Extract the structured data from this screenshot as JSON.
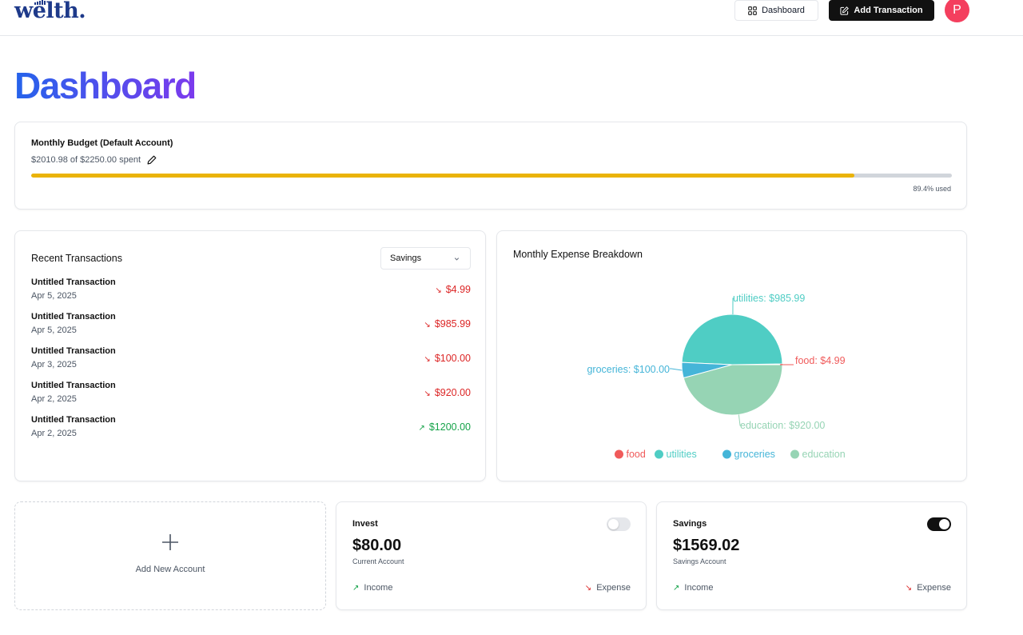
{
  "header": {
    "logo": "welth.",
    "dashboard_label": "Dashboard",
    "add_transaction_label": "Add Transaction",
    "avatar_initial": "P"
  },
  "page_title": "Dashboard",
  "budget": {
    "title": "Monthly Budget (Default Account)",
    "spent_text": "$2010.98 of $2250.00 spent",
    "used_text": "89.4% used",
    "used_fraction": 0.894
  },
  "transactions": {
    "title": "Recent Transactions",
    "account_select": "Savings",
    "items": [
      {
        "name": "Untitled Transaction",
        "date": "Apr 5, 2025",
        "amount": "$4.99",
        "type": "expense"
      },
      {
        "name": "Untitled Transaction",
        "date": "Apr 5, 2025",
        "amount": "$985.99",
        "type": "expense"
      },
      {
        "name": "Untitled Transaction",
        "date": "Apr 3, 2025",
        "amount": "$100.00",
        "type": "expense"
      },
      {
        "name": "Untitled Transaction",
        "date": "Apr 2, 2025",
        "amount": "$920.00",
        "type": "expense"
      },
      {
        "name": "Untitled Transaction",
        "date": "Apr 2, 2025",
        "amount": "$1200.00",
        "type": "income"
      }
    ]
  },
  "chart_data": {
    "type": "pie",
    "title": "Monthly Expense Breakdown",
    "categories": [
      "food",
      "utilities",
      "groceries",
      "education"
    ],
    "values": [
      4.99,
      985.99,
      100.0,
      920.0
    ],
    "labels": [
      "food: $4.99",
      "utilities: $985.99",
      "groceries: $100.00",
      "education: $920.00"
    ],
    "colors": [
      "#f05a5a",
      "#4fcdc4",
      "#45b5d8",
      "#96d4b4"
    ],
    "legend_position": "bottom"
  },
  "add_account_label": "Add New Account",
  "accounts": [
    {
      "name": "Invest",
      "balance": "$80.00",
      "type": "Current Account",
      "income_label": "Income",
      "expense_label": "Expense",
      "is_default": false
    },
    {
      "name": "Savings",
      "balance": "$1569.02",
      "type": "Savings Account",
      "income_label": "Income",
      "expense_label": "Expense",
      "is_default": true
    }
  ],
  "icons": {
    "arrow_down_right": "↘",
    "arrow_up_right": "↗"
  },
  "colors": {
    "expense": "#dc2626",
    "income": "#16a34a",
    "progress": "#eab308",
    "avatar": "#f43f5e"
  }
}
